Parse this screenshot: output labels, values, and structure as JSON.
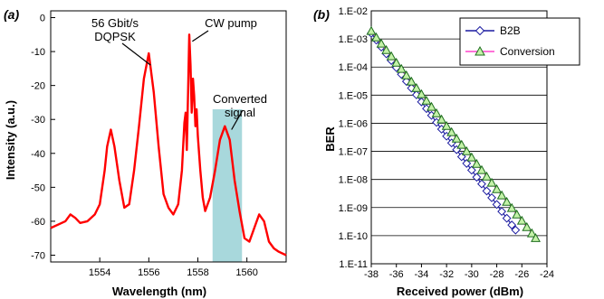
{
  "chart_data": [
    {
      "type": "line",
      "panel_label": "(a)",
      "xlabel": "Wavelength (nm)",
      "ylabel": "Intensity (a.u.)",
      "xlim": [
        1552,
        1561.6
      ],
      "ylim": [
        -72,
        2
      ],
      "xticks": [
        1554,
        1556,
        1558,
        1560
      ],
      "yticks": [
        0,
        -10,
        -20,
        -30,
        -40,
        -50,
        -60,
        -70
      ],
      "grid": false,
      "series_color": "#ff0000",
      "highlight_color": "#a8d8dc",
      "highlight_range": [
        1558.6,
        1559.8
      ],
      "series": [
        {
          "x": [
            1552.0,
            1552.3,
            1552.6,
            1552.8,
            1553.0,
            1553.2,
            1553.5,
            1553.8,
            1554.0,
            1554.2,
            1554.3,
            1554.45,
            1554.6,
            1554.8,
            1555.0,
            1555.2,
            1555.4,
            1555.6,
            1555.8,
            1556.0,
            1556.2,
            1556.4,
            1556.6,
            1556.8,
            1557.0,
            1557.2,
            1557.35,
            1557.45,
            1557.5,
            1557.55,
            1557.6,
            1557.65,
            1557.7,
            1557.75,
            1557.8,
            1557.85,
            1557.9,
            1557.95,
            1558.0,
            1558.1,
            1558.2,
            1558.3,
            1558.5,
            1558.7,
            1558.9,
            1559.1,
            1559.3,
            1559.5,
            1559.7,
            1559.9,
            1560.1,
            1560.3,
            1560.5,
            1560.7,
            1560.9,
            1561.1,
            1561.3,
            1561.6
          ],
          "y": [
            -62,
            -61,
            -60,
            -58,
            -59,
            -60.5,
            -60,
            -58,
            -55,
            -45,
            -38,
            -33,
            -38,
            -48,
            -56,
            -55,
            -45,
            -32,
            -18,
            -10.5,
            -22,
            -38,
            -52,
            -56,
            -58,
            -55,
            -45,
            -31,
            -28,
            -39,
            -22,
            -5,
            -14,
            -28,
            -18,
            -23,
            -32,
            -27,
            -35,
            -45,
            -53,
            -57,
            -53,
            -45,
            -36,
            -32,
            -36,
            -48,
            -57,
            -65,
            -66,
            -62,
            -58,
            -60,
            -66,
            -68,
            -69,
            -70
          ]
        }
      ],
      "annotations": [
        {
          "lines": [
            "56 Gbit/s",
            "DQPSK"
          ],
          "target_x": 1556.0,
          "target_y": -14
        },
        {
          "lines": [
            "CW pump"
          ],
          "target_x": 1557.7,
          "target_y": -7
        },
        {
          "lines": [
            "Converted",
            "signal"
          ],
          "target_x": 1559.3,
          "target_y": -33
        }
      ]
    },
    {
      "type": "scatter",
      "panel_label": "(b)",
      "xlabel": "Received power (dBm)",
      "ylabel": "BER",
      "xlim": [
        -38,
        -24
      ],
      "y_scale": "log",
      "ylim_exponent": [
        -11,
        -2
      ],
      "xticks": [
        -38,
        -36,
        -34,
        -32,
        -30,
        -28,
        -26,
        -24
      ],
      "yticks": [
        "1.E-02",
        "1.E-03",
        "1.E-04",
        "1.E-05",
        "1.E-06",
        "1.E-07",
        "1.E-08",
        "1.E-09",
        "1.E-10",
        "1.E-11"
      ],
      "grid": true,
      "legend_position": "top-right",
      "series": [
        {
          "name": "B2B",
          "marker": "diamond",
          "color": "#1a1aa0",
          "x": [
            -38.0,
            -37.6,
            -37.2,
            -36.8,
            -36.4,
            -36.0,
            -35.6,
            -35.2,
            -34.8,
            -34.4,
            -34.0,
            -33.6,
            -33.2,
            -32.8,
            -32.4,
            -32.0,
            -31.6,
            -31.2,
            -30.8,
            -30.4,
            -30.0,
            -29.6,
            -29.2,
            -28.8,
            -28.4,
            -28.0,
            -27.6,
            -27.2,
            -26.8,
            -26.5
          ],
          "y_exp": [
            -2.8,
            -3.04,
            -3.29,
            -3.53,
            -3.77,
            -4.02,
            -4.26,
            -4.51,
            -4.75,
            -4.99,
            -5.24,
            -5.48,
            -5.72,
            -5.97,
            -6.21,
            -6.46,
            -6.7,
            -6.94,
            -7.19,
            -7.43,
            -7.67,
            -7.92,
            -8.16,
            -8.41,
            -8.65,
            -8.89,
            -9.14,
            -9.38,
            -9.62,
            -9.8
          ]
        },
        {
          "name": "Conversion",
          "marker": "triangle",
          "line_color": "#ff44cc",
          "color": "#1e6e1e",
          "fill": "#c4f2a8",
          "x": [
            -38.0,
            -37.6,
            -37.2,
            -36.8,
            -36.4,
            -36.0,
            -35.6,
            -35.2,
            -34.8,
            -34.4,
            -34.0,
            -33.6,
            -33.2,
            -32.8,
            -32.4,
            -32.0,
            -31.6,
            -31.2,
            -30.8,
            -30.4,
            -30.0,
            -29.6,
            -29.2,
            -28.8,
            -28.4,
            -28.0,
            -27.6,
            -27.2,
            -26.8,
            -26.4,
            -26.0,
            -25.6,
            -25.2,
            -24.9
          ],
          "y_exp": [
            -2.72,
            -2.95,
            -3.17,
            -3.4,
            -3.62,
            -3.85,
            -4.07,
            -4.3,
            -4.52,
            -4.75,
            -4.97,
            -5.2,
            -5.42,
            -5.65,
            -5.87,
            -6.1,
            -6.32,
            -6.55,
            -6.77,
            -7.0,
            -7.22,
            -7.45,
            -7.67,
            -7.9,
            -8.12,
            -8.35,
            -8.57,
            -8.8,
            -9.02,
            -9.25,
            -9.47,
            -9.7,
            -9.92,
            -10.09
          ]
        }
      ]
    }
  ]
}
